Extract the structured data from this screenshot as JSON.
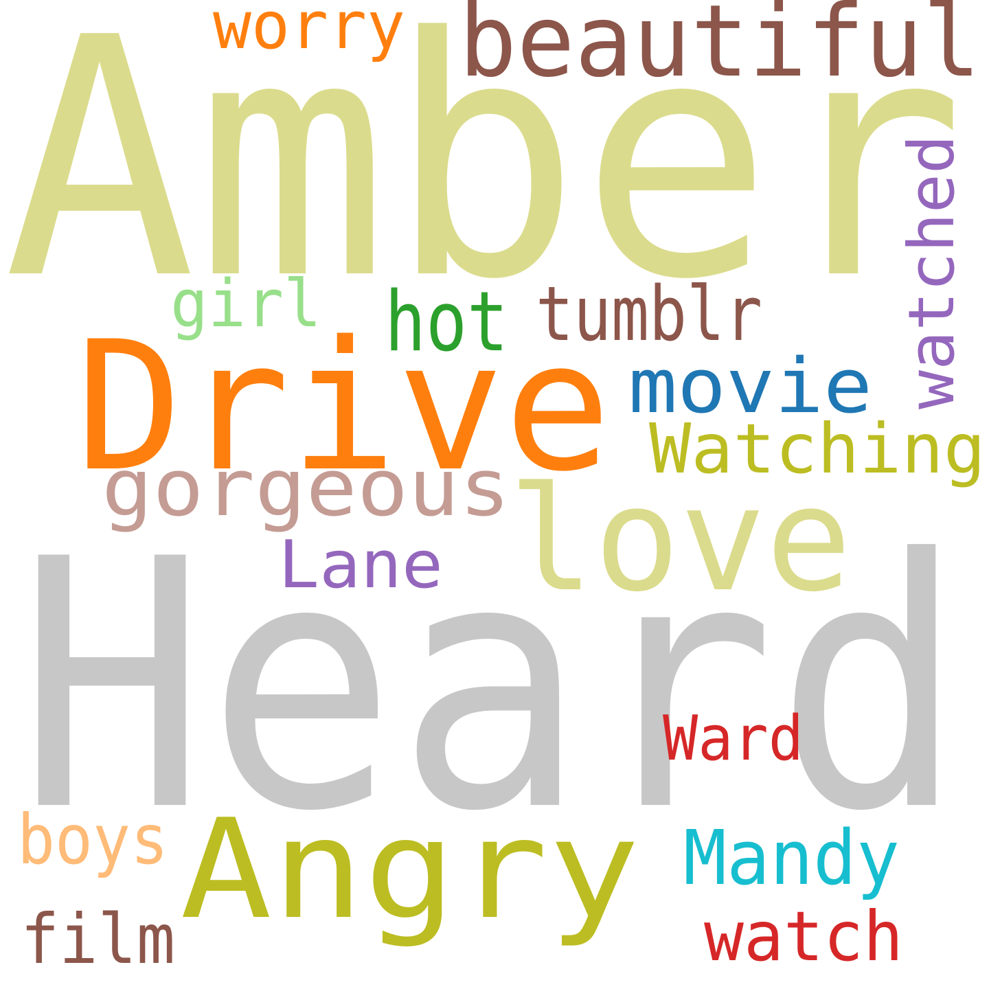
{
  "words": [
    {
      "text": "Amber",
      "color": "#dbdb8d"
    },
    {
      "text": "Heard",
      "color": "#c7c7c7"
    },
    {
      "text": "beautiful",
      "color": "#8c564b"
    },
    {
      "text": "worry",
      "color": "#ff7f0e"
    },
    {
      "text": "watched",
      "color": "#9467bd"
    },
    {
      "text": "girl",
      "color": "#98df8a"
    },
    {
      "text": "hot",
      "color": "#2ca02c"
    },
    {
      "text": "tumblr",
      "color": "#8c564b"
    },
    {
      "text": "Drive",
      "color": "#ff7f0e"
    },
    {
      "text": "movie",
      "color": "#1f77b4"
    },
    {
      "text": "Watching",
      "color": "#bcbd22"
    },
    {
      "text": "gorgeous",
      "color": "#c49c94"
    },
    {
      "text": "love",
      "color": "#dbdb8d"
    },
    {
      "text": "Lane",
      "color": "#9467bd"
    },
    {
      "text": "Ward",
      "color": "#d62728"
    },
    {
      "text": "boys",
      "color": "#ffbb78"
    },
    {
      "text": "Angry",
      "color": "#bcbd22"
    },
    {
      "text": "Mandy",
      "color": "#17becf"
    },
    {
      "text": "film",
      "color": "#8c564b"
    },
    {
      "text": "watch",
      "color": "#d62728"
    }
  ]
}
